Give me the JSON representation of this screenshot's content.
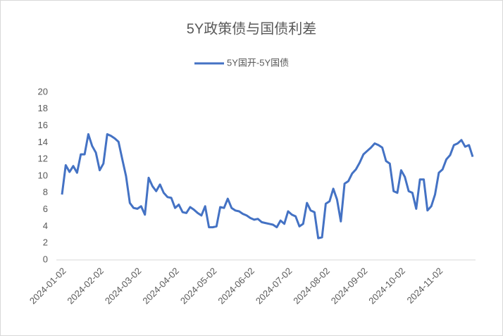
{
  "chart_data": {
    "type": "line",
    "title": "5Y政策债与国债利差",
    "categories": [
      "2024-01-02",
      null,
      null,
      null,
      null,
      null,
      null,
      null,
      null,
      null,
      "2024-02-02",
      null,
      null,
      null,
      null,
      null,
      null,
      null,
      null,
      null,
      "2024-03-02",
      null,
      null,
      null,
      null,
      null,
      null,
      null,
      null,
      null,
      "2024-04-02",
      null,
      null,
      null,
      null,
      null,
      null,
      null,
      null,
      null,
      "2024-05-02",
      null,
      null,
      null,
      null,
      null,
      null,
      null,
      null,
      null,
      "2024-06-02",
      null,
      null,
      null,
      null,
      null,
      null,
      null,
      null,
      null,
      "2024-07-02",
      null,
      null,
      null,
      null,
      null,
      null,
      null,
      null,
      null,
      "2024-08-02",
      null,
      null,
      null,
      null,
      null,
      null,
      null,
      null,
      null,
      "2024-09-02",
      null,
      null,
      null,
      null,
      null,
      null,
      null,
      null,
      null,
      "2024-10-02",
      null,
      null,
      null,
      null,
      null,
      null,
      null,
      null,
      null,
      "2024-11-02",
      null,
      null,
      null,
      null,
      null,
      null,
      null,
      null,
      null
    ],
    "series": [
      {
        "name": "5Y国开-5Y国债",
        "color": "#4472c4",
        "values": [
          7.8,
          11.3,
          10.5,
          11.2,
          10.4,
          12.6,
          12.6,
          15.0,
          13.6,
          12.8,
          10.7,
          11.5,
          15.0,
          14.8,
          14.5,
          14.1,
          12.0,
          10.0,
          6.8,
          6.2,
          6.1,
          6.4,
          5.4,
          9.8,
          8.8,
          8.2,
          9.0,
          8.0,
          7.5,
          7.4,
          6.2,
          6.6,
          5.7,
          5.6,
          6.3,
          6.0,
          5.6,
          5.3,
          6.4,
          3.9,
          3.9,
          4.0,
          6.3,
          6.2,
          7.3,
          6.2,
          5.9,
          5.8,
          5.5,
          5.3,
          5.0,
          4.8,
          4.9,
          4.5,
          4.4,
          4.3,
          4.2,
          3.9,
          4.7,
          4.3,
          5.8,
          5.4,
          5.2,
          4.0,
          4.3,
          6.8,
          5.9,
          5.7,
          2.6,
          2.7,
          6.7,
          7.0,
          8.5,
          7.2,
          4.6,
          9.1,
          9.4,
          10.3,
          10.8,
          11.6,
          12.6,
          13.0,
          13.4,
          13.9,
          13.7,
          13.4,
          11.8,
          11.5,
          8.2,
          8.0,
          10.7,
          9.9,
          8.2,
          8.0,
          6.1,
          9.6,
          9.6,
          5.9,
          6.4,
          7.8,
          10.4,
          10.8,
          12.0,
          12.5,
          13.7,
          13.9,
          14.3,
          13.5,
          13.7,
          12.3
        ]
      }
    ],
    "ylim": [
      0,
      20
    ],
    "yticks": [
      0,
      2,
      4,
      6,
      8,
      10,
      12,
      14,
      16,
      18,
      20
    ],
    "grid": false,
    "legend": "top"
  }
}
